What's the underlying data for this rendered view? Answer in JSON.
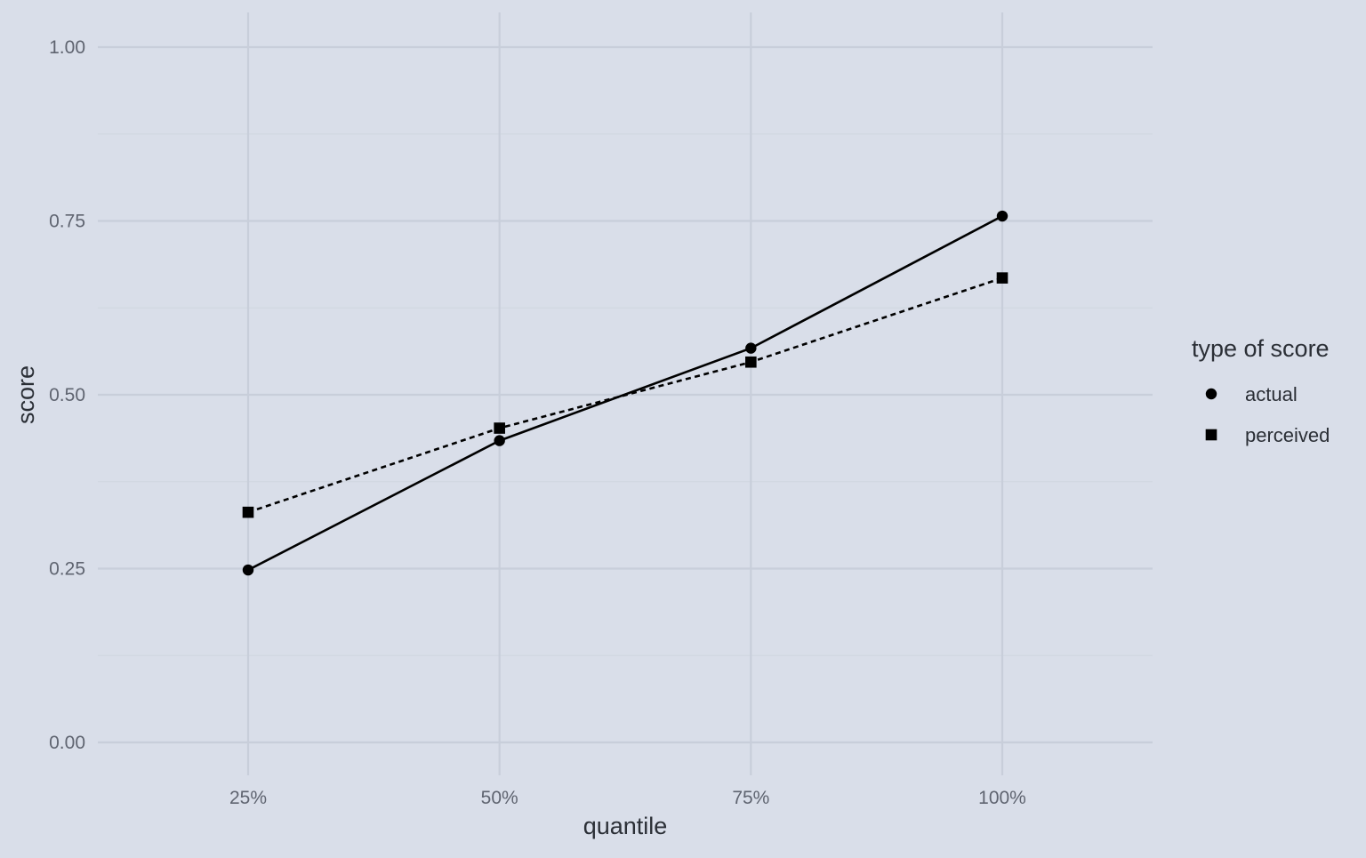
{
  "chart_data": {
    "type": "line",
    "title": "",
    "xlabel": "quantile",
    "ylabel": "score",
    "categories": [
      "25%",
      "50%",
      "75%",
      "100%"
    ],
    "ylim": [
      0,
      1
    ],
    "y_ticks": [
      "0.00",
      "0.25",
      "0.50",
      "0.75",
      "1.00"
    ],
    "y_tick_values": [
      0,
      0.25,
      0.5,
      0.75,
      1.0
    ],
    "grid": true,
    "background": "#d9dee9",
    "legend": {
      "title": "type of score",
      "placement": "right",
      "entries": [
        {
          "label": "actual",
          "shape": "circle",
          "line": "solid"
        },
        {
          "label": "perceived",
          "shape": "square",
          "line": "dotted"
        }
      ]
    },
    "series": [
      {
        "name": "actual",
        "values": [
          0.248,
          0.434,
          0.567,
          0.757
        ],
        "marker": "circle",
        "line": "solid",
        "color": "#000000"
      },
      {
        "name": "perceived",
        "values": [
          0.331,
          0.452,
          0.547,
          0.668
        ],
        "marker": "square",
        "line": "dotted",
        "color": "#000000"
      }
    ]
  }
}
